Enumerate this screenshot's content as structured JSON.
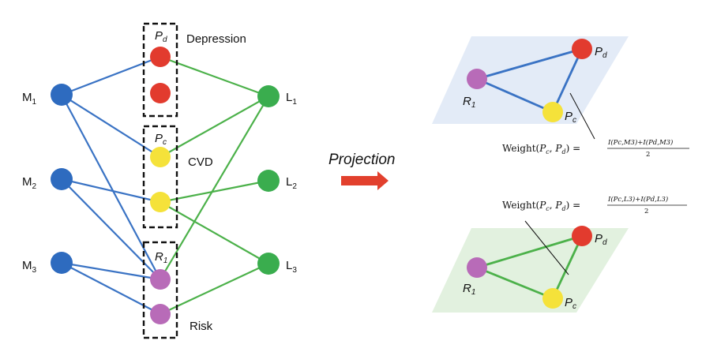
{
  "colors": {
    "m_node": "#2e6bbf",
    "l_node": "#3aad4e",
    "depression_node": "#e23b2e",
    "cvd_node": "#f5e23a",
    "risk_node": "#b86bb8",
    "blue_edge": "#3a73c4",
    "green_edge": "#4cb14a",
    "blue_plane": "#e3ebf7",
    "green_plane": "#e2f1df",
    "arrow": "#e2402d"
  },
  "left": {
    "m_nodes": [
      {
        "base": "M",
        "sub": "1"
      },
      {
        "base": "M",
        "sub": "2"
      },
      {
        "base": "M",
        "sub": "3"
      }
    ],
    "l_nodes": [
      {
        "base": "L",
        "sub": "1"
      },
      {
        "base": "L",
        "sub": "2"
      },
      {
        "base": "L",
        "sub": "3"
      }
    ],
    "groups": [
      {
        "key": "d",
        "box_base": "P",
        "box_sub": "d",
        "caption": "Depression"
      },
      {
        "key": "c",
        "box_base": "P",
        "box_sub": "c",
        "caption": "CVD"
      },
      {
        "key": "r",
        "box_base": "R",
        "box_sub": "1",
        "caption": "Risk"
      }
    ]
  },
  "arrow_label": "Projection",
  "top_graph": {
    "nodes": [
      {
        "base": "P",
        "sub": "d"
      },
      {
        "base": "R",
        "sub": "1"
      },
      {
        "base": "P",
        "sub": "c"
      }
    ],
    "formula": {
      "lhs": "Weight(",
      "lhs_p1": "P",
      "lhs_p1_sub": "c",
      "lhs_p2": "P",
      "lhs_p2_sub": "d",
      "numerator": "I(Pc,M3)+I(Pd,M3)",
      "denominator": "2"
    }
  },
  "bottom_graph": {
    "nodes": [
      {
        "base": "P",
        "sub": "d"
      },
      {
        "base": "R",
        "sub": "1"
      },
      {
        "base": "P",
        "sub": "c"
      }
    ],
    "formula": {
      "lhs": "Weight(",
      "lhs_p1": "P",
      "lhs_p1_sub": "c",
      "lhs_p2": "P",
      "lhs_p2_sub": "d",
      "numerator": "I(Pc,L3)+I(Pd,L3)",
      "denominator": "2"
    }
  }
}
